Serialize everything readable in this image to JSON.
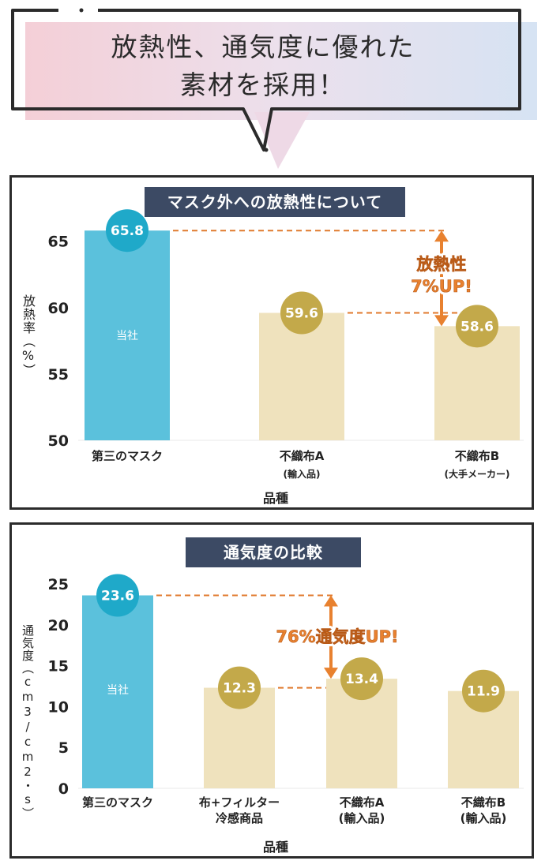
{
  "headline": {
    "line1": "放熱性、通気度に優れた",
    "line2": "素材を採用！"
  },
  "colors": {
    "own_bar": "#5bc1dc",
    "other_bar": "#efe2bd",
    "own_badge": "#1fa9c9",
    "other_badge": "#c3a94a",
    "dash": "#e07a2e",
    "arrow": "#e8812f",
    "title_box": "#3c4a64"
  },
  "chart_data": [
    {
      "type": "bar",
      "title": "マスク外への放熱性について",
      "ylabel": "放熱率（%）",
      "xlabel": "品種",
      "ylim": [
        50,
        67
      ],
      "yticks": [
        50,
        55,
        60,
        65
      ],
      "categories": [
        {
          "name": "第三のマスク",
          "sub": "",
          "bar_label": "当社"
        },
        {
          "name": "不織布A",
          "sub": "(輸入品)",
          "bar_label": ""
        },
        {
          "name": "不織布B",
          "sub": "(大手メーカー)",
          "bar_label": ""
        }
      ],
      "values": [
        65.8,
        59.6,
        58.6
      ],
      "value_labels": [
        "65.8",
        "59.6",
        "58.6"
      ],
      "annotation": {
        "line1": "放熱性",
        "line2": "7%UP!"
      },
      "grid": false
    },
    {
      "type": "bar",
      "title": "通気度の比較",
      "ylabel": "通気度（cm3/cm2・s）",
      "xlabel": "品種",
      "ylim": [
        0,
        25
      ],
      "yticks": [
        0,
        5,
        10,
        15,
        20,
        25
      ],
      "categories": [
        {
          "name": "第三のマスク",
          "sub": "",
          "bar_label": "当社"
        },
        {
          "name": "布+フィルター",
          "sub": "冷感商品",
          "bar_label": ""
        },
        {
          "name": "不織布A",
          "sub": "(輸入品)",
          "bar_label": ""
        },
        {
          "name": "不織布B",
          "sub": "(輸入品)",
          "bar_label": ""
        }
      ],
      "values": [
        23.6,
        12.3,
        13.4,
        11.9
      ],
      "value_labels": [
        "23.6",
        "12.3",
        "13.4",
        "11.9"
      ],
      "annotation": {
        "line1": "76%通気度UP!",
        "line2": ""
      },
      "grid": false
    }
  ]
}
